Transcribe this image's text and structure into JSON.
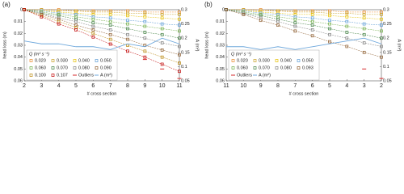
{
  "chart_data": [
    {
      "type": "line",
      "panel_label": "(a)",
      "x_label": "# cross section",
      "y_label": "head loss (m)",
      "y2_label": "A (m²)",
      "legend_title": "Q (m³ s⁻¹)",
      "xlim": [
        2,
        11
      ],
      "xticks": [
        2,
        3,
        4,
        5,
        6,
        7,
        8,
        9,
        10,
        11
      ],
      "ylim": [
        0,
        0.06
      ],
      "y_inverted": true,
      "yticks": [
        0,
        0.01,
        0.02,
        0.03,
        0.04,
        0.05,
        0.06
      ],
      "y2lim": [
        0.05,
        0.3
      ],
      "y2ticks": [
        0.05,
        0.1,
        0.15,
        0.2,
        0.25,
        0.3
      ],
      "x": [
        2,
        3,
        4,
        5,
        6,
        7,
        8,
        9,
        10,
        11
      ],
      "series": [
        {
          "name": "0.020",
          "color": "#e8892b",
          "values": [
            0,
            0,
            0,
            0.001,
            0.001,
            0.001,
            0.001,
            0.002,
            0.002,
            0.002
          ]
        },
        {
          "name": "0.030",
          "color": "#c9a227",
          "values": [
            0,
            0,
            0.001,
            0.001,
            0.002,
            0.002,
            0.003,
            0.003,
            0.004,
            0.004
          ]
        },
        {
          "name": "0.040",
          "color": "#e6c000",
          "values": [
            0,
            0.001,
            0.002,
            0.003,
            0.004,
            0.004,
            0.005,
            0.006,
            0.007,
            0.008
          ]
        },
        {
          "name": "0.050",
          "color": "#5b9bd5",
          "values": [
            0,
            0.001,
            0.003,
            0.004,
            0.006,
            0.007,
            0.009,
            0.01,
            0.012,
            0.013
          ]
        },
        {
          "name": "0.060",
          "color": "#70ad47",
          "values": [
            0,
            0.002,
            0.004,
            0.006,
            0.008,
            0.01,
            0.012,
            0.014,
            0.016,
            0.018
          ]
        },
        {
          "name": "0.070",
          "color": "#3f7f3f",
          "values": [
            0,
            0.003,
            0.005,
            0.008,
            0.011,
            0.013,
            0.016,
            0.019,
            0.021,
            0.024
          ]
        },
        {
          "name": "0.080",
          "color": "#7f7f7f",
          "values": [
            0,
            0.003,
            0.007,
            0.01,
            0.014,
            0.017,
            0.021,
            0.024,
            0.028,
            0.031
          ]
        },
        {
          "name": "0.090",
          "color": "#8b5a2b",
          "values": [
            0,
            0.004,
            0.008,
            0.013,
            0.017,
            0.021,
            0.025,
            0.03,
            0.034,
            0.038
          ]
        },
        {
          "name": "0.100",
          "color": "#b8860b",
          "values": [
            0,
            0.005,
            0.01,
            0.015,
            0.02,
            0.025,
            0.03,
            0.035,
            0.04,
            0.045
          ]
        },
        {
          "name": "0.107",
          "color": "#c00000",
          "values": [
            0,
            0.006,
            0.012,
            0.017,
            0.023,
            0.029,
            0.035,
            0.04,
            0.046,
            0.052
          ]
        },
        {
          "name": "Outliers",
          "color": "#d62728",
          "marker": "dash",
          "x": [
            9,
            10,
            11
          ],
          "values": [
            0.042,
            0.05,
            0.058
          ]
        },
        {
          "name": "A (m²)",
          "color": "#6fa8dc",
          "axis": "y2",
          "values": [
            0.19,
            0.18,
            0.18,
            0.17,
            0.17,
            0.16,
            0.18,
            0.17,
            0.2,
            0.18
          ]
        }
      ]
    },
    {
      "type": "line",
      "panel_label": "(b)",
      "x_label": "# cross section",
      "y_label": "head loss (m)",
      "y2_label": "A (m²)",
      "legend_title": "Q (m³ s⁻¹)",
      "xlim": [
        11,
        2
      ],
      "xticks": [
        11,
        10,
        9,
        8,
        7,
        6,
        5,
        4,
        3,
        2
      ],
      "ylim": [
        0,
        0.06
      ],
      "y_inverted": true,
      "yticks": [
        0,
        0.01,
        0.02,
        0.03,
        0.04,
        0.05,
        0.06
      ],
      "y2lim": [
        0.05,
        0.3
      ],
      "y2ticks": [
        0.05,
        0.1,
        0.15,
        0.2,
        0.25,
        0.3
      ],
      "x": [
        11,
        10,
        9,
        8,
        7,
        6,
        5,
        4,
        3,
        2
      ],
      "series": [
        {
          "name": "0.020",
          "color": "#e8892b",
          "values": [
            0,
            0,
            0,
            0.001,
            0.001,
            0.001,
            0.001,
            0.002,
            0.002,
            0.002
          ]
        },
        {
          "name": "0.030",
          "color": "#c9a227",
          "values": [
            0,
            0,
            0.001,
            0.001,
            0.002,
            0.002,
            0.003,
            0.003,
            0.004,
            0.004
          ]
        },
        {
          "name": "0.040",
          "color": "#e6c000",
          "values": [
            0,
            0.001,
            0.002,
            0.003,
            0.004,
            0.004,
            0.005,
            0.006,
            0.007,
            0.008
          ]
        },
        {
          "name": "0.050",
          "color": "#5b9bd5",
          "values": [
            0,
            0.001,
            0.003,
            0.004,
            0.006,
            0.007,
            0.009,
            0.01,
            0.012,
            0.013
          ]
        },
        {
          "name": "0.060",
          "color": "#70ad47",
          "values": [
            0,
            0.002,
            0.004,
            0.006,
            0.008,
            0.01,
            0.012,
            0.014,
            0.016,
            0.018
          ]
        },
        {
          "name": "0.070",
          "color": "#3f7f3f",
          "values": [
            0,
            0.003,
            0.005,
            0.008,
            0.011,
            0.013,
            0.016,
            0.019,
            0.021,
            0.024
          ]
        },
        {
          "name": "0.080",
          "color": "#7f7f7f",
          "values": [
            0,
            0.003,
            0.007,
            0.01,
            0.014,
            0.017,
            0.021,
            0.024,
            0.028,
            0.031
          ]
        },
        {
          "name": "0.093",
          "color": "#8b5a2b",
          "values": [
            0,
            0.004,
            0.009,
            0.013,
            0.018,
            0.022,
            0.027,
            0.031,
            0.036,
            0.04
          ]
        },
        {
          "name": "Outliers",
          "color": "#d62728",
          "marker": "dash",
          "x": [
            3,
            2
          ],
          "values": [
            0.05,
            0.058
          ]
        },
        {
          "name": "A (m²)",
          "color": "#6fa8dc",
          "axis": "y2",
          "values": [
            0.17,
            0.17,
            0.16,
            0.17,
            0.16,
            0.17,
            0.18,
            0.19,
            0.2,
            0.18
          ]
        }
      ]
    }
  ]
}
